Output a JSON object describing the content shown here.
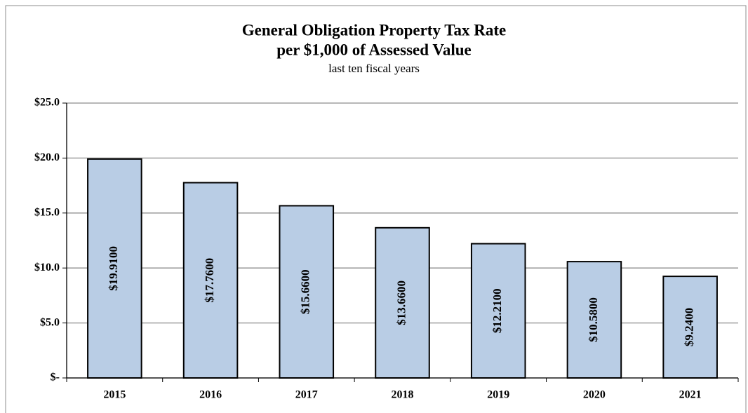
{
  "chart_data": {
    "type": "bar",
    "title": "General Obligation Property Tax Rate",
    "subtitle_line": "per $1,000 of Assessed Value",
    "subtitle": "last ten fiscal years",
    "categories": [
      "2015",
      "2016",
      "2017",
      "2018",
      "2019",
      "2020",
      "2021"
    ],
    "values": [
      19.91,
      17.76,
      15.66,
      13.66,
      12.21,
      10.58,
      9.24
    ],
    "value_labels": [
      "$19.9100",
      "$17.7600",
      "$15.6600",
      "$13.6600",
      "$12.2100",
      "$10.5800",
      "$9.2400"
    ],
    "color": "#b9cde5",
    "ylim": [
      0,
      25
    ],
    "yticks": [
      {
        "value": 0,
        "label": "$-"
      },
      {
        "value": 5,
        "label": "$5.0"
      },
      {
        "value": 10,
        "label": "$10.0"
      },
      {
        "value": 15,
        "label": "$15.0"
      },
      {
        "value": 20,
        "label": "$20.0"
      },
      {
        "value": 25,
        "label": "$25.0"
      }
    ],
    "grid": true
  }
}
